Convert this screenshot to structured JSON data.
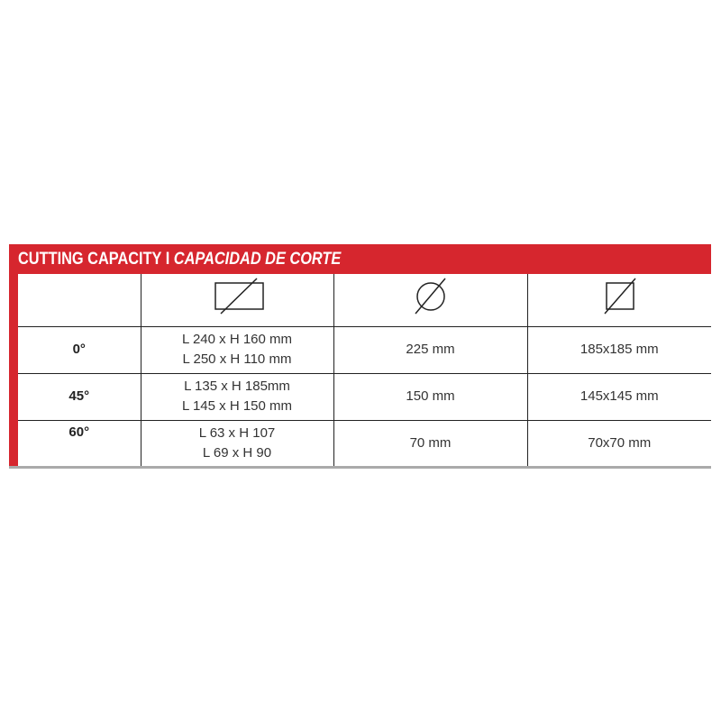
{
  "section": {
    "title_en": "CUTTING CAPACITY",
    "separator": "I",
    "title_es": "CAPACIDAD DE CORTE"
  },
  "colors": {
    "accent": "#d6262e"
  },
  "table": {
    "header_icons": [
      "rectangle-section-icon",
      "round-section-icon",
      "square-section-icon"
    ],
    "rows": [
      {
        "angle": "0°",
        "rect": [
          "L 240 x H 160 mm",
          "L 250 x H 110 mm"
        ],
        "round": "225 mm",
        "square": "185x185 mm"
      },
      {
        "angle": "45°",
        "rect": [
          "L 135 x H 185mm",
          "L 145 x H 150 mm"
        ],
        "round": "150 mm",
        "square": "145x145 mm"
      },
      {
        "angle": "60°",
        "rect": [
          "L 63 x H 107",
          "L 69 x H 90"
        ],
        "round": "70 mm",
        "square": "70x70 mm"
      }
    ]
  }
}
